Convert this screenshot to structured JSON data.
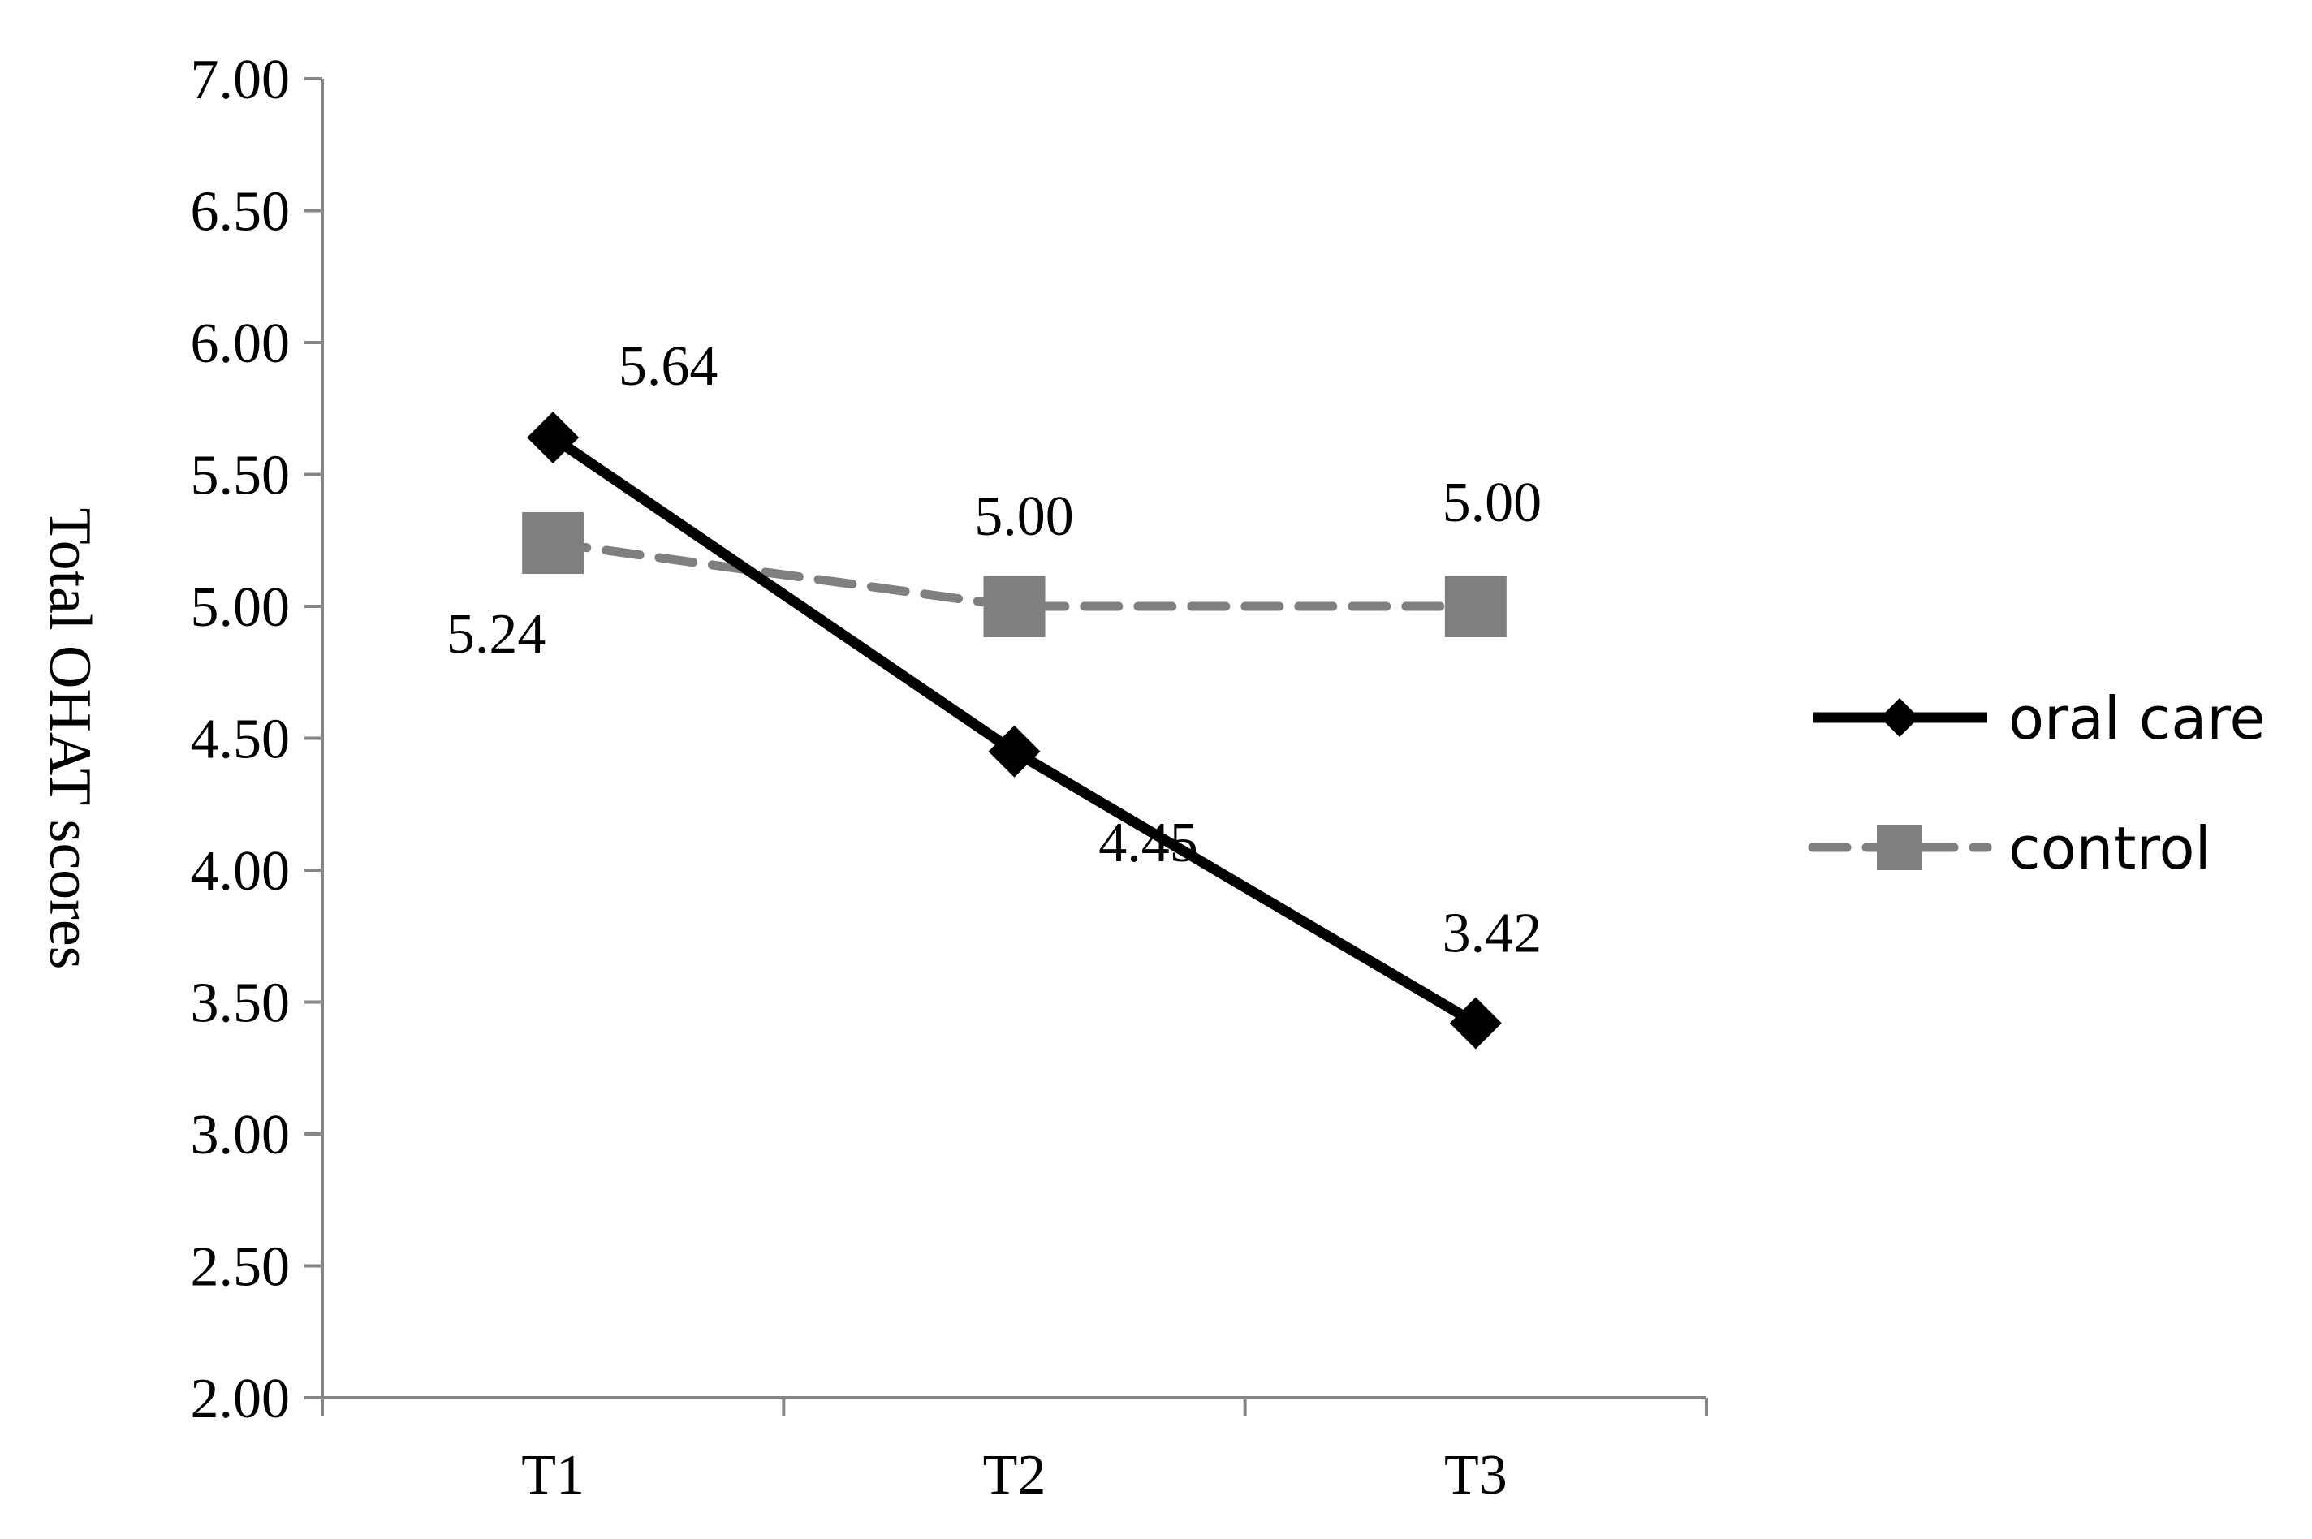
{
  "chart_data": {
    "type": "line",
    "title": "",
    "xlabel": "",
    "ylabel": "Total OHAT scores",
    "categories": [
      "T1",
      "T2",
      "T3"
    ],
    "ylim": [
      2.0,
      7.0
    ],
    "yticks": [
      "2.00",
      "2.50",
      "3.00",
      "3.50",
      "4.00",
      "4.50",
      "5.00",
      "5.50",
      "6.00",
      "6.50",
      "7.00"
    ],
    "grid": false,
    "legend_position": "right",
    "series": [
      {
        "name": "oral care",
        "values": [
          5.64,
          4.45,
          3.42
        ],
        "labels": [
          "5.64",
          "4.45",
          "3.42"
        ],
        "color": "#000000",
        "line_style": "solid",
        "marker": "diamond"
      },
      {
        "name": "control",
        "values": [
          5.24,
          5.0,
          5.0
        ],
        "labels": [
          "5.24",
          "5.00",
          "5.00"
        ],
        "color": "#7f7f7f",
        "line_style": "dashed",
        "marker": "square"
      }
    ]
  }
}
